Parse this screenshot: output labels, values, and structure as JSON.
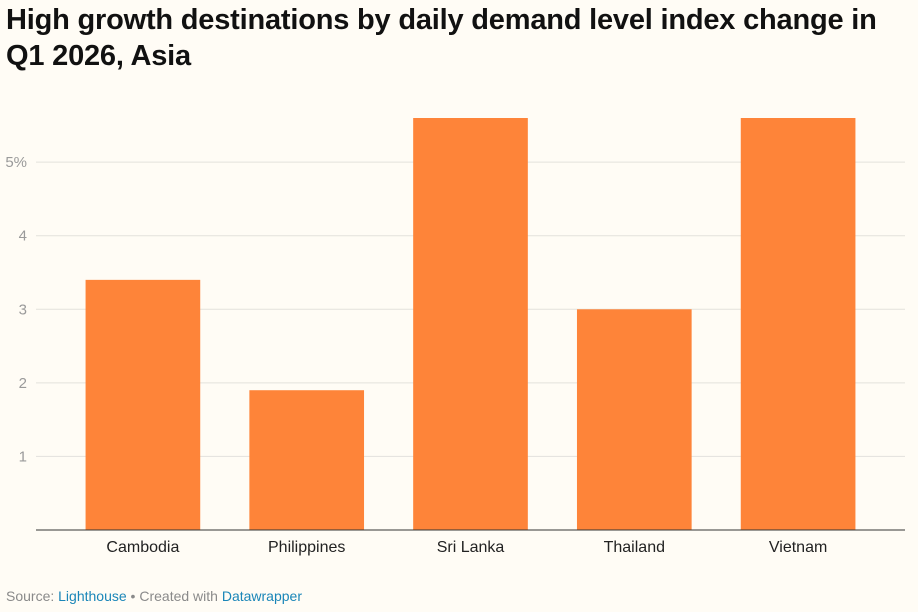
{
  "chart_data": {
    "type": "bar",
    "title": "High growth destinations by daily demand level index change in Q1 2026, Asia",
    "categories": [
      "Cambodia",
      "Philippines",
      "Sri Lanka",
      "Thailand",
      "Vietnam"
    ],
    "values": [
      3.4,
      1.9,
      5.6,
      3.0,
      5.6
    ],
    "ylim": [
      0,
      5.6
    ],
    "yticks": [
      1,
      2,
      3,
      4,
      5
    ],
    "ytick_labels": [
      "1",
      "2",
      "3",
      "4",
      "5%"
    ],
    "xlabel": "",
    "ylabel": "",
    "grid": true,
    "bar_color": "#fe8439"
  },
  "footer": {
    "source_label": "Source:",
    "source_name": "Lighthouse",
    "separator": "•",
    "created_label": "Created with",
    "tool_name": "Datawrapper"
  }
}
